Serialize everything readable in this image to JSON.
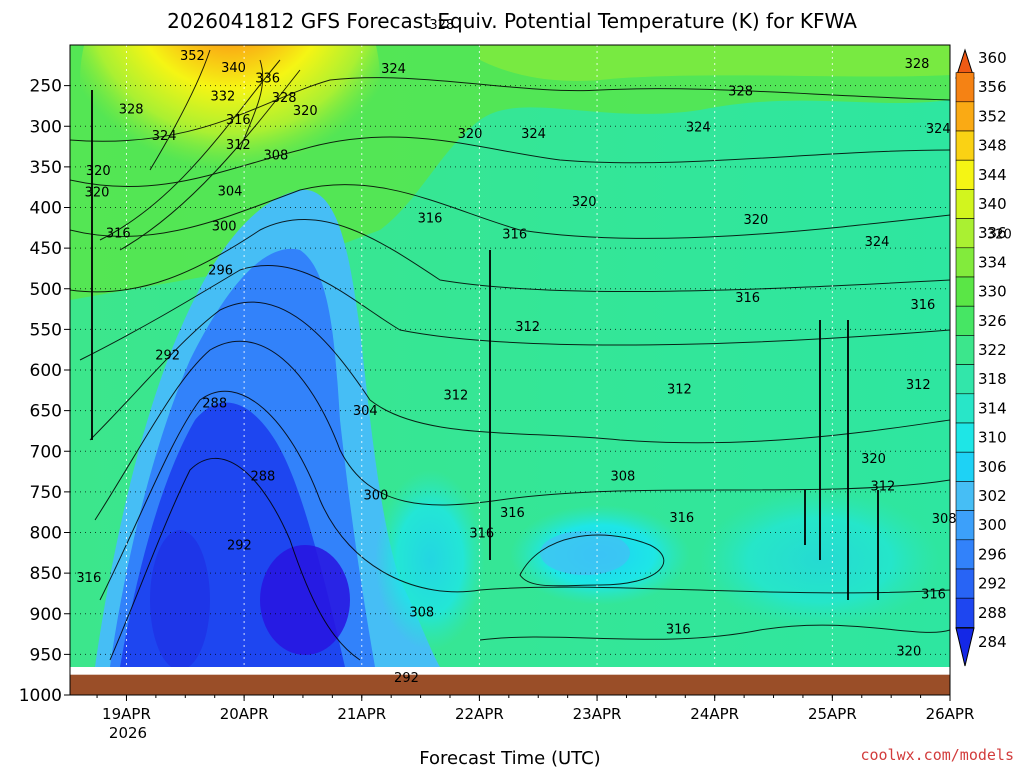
{
  "chart_data": {
    "type": "heatmap",
    "title": "2026041812 GFS Forecast Equiv. Potential Temperature (K) for KFWA",
    "xlabel": "Forecast Time (UTC)",
    "ylabel": "",
    "x_ticks": [
      "19APR",
      "20APR",
      "21APR",
      "22APR",
      "23APR",
      "24APR",
      "25APR",
      "26APR"
    ],
    "x_tick_day_offsets": [
      1,
      2,
      3,
      4,
      5,
      6,
      7,
      8
    ],
    "x_range_day_offsets": [
      0.52,
      8.0
    ],
    "year_label": "2026",
    "y_ticks": [
      250,
      300,
      350,
      400,
      450,
      500,
      550,
      600,
      650,
      700,
      750,
      800,
      850,
      900,
      950,
      1000
    ],
    "y_range_hpa": [
      200,
      1000
    ],
    "ground_level_hpa": 975,
    "colorbar": {
      "labels": [
        284,
        288,
        292,
        296,
        300,
        302,
        306,
        310,
        314,
        318,
        322,
        326,
        330,
        334,
        336,
        340,
        344,
        348,
        352,
        356,
        360
      ],
      "colors": [
        "#1428e6",
        "#1e46f0",
        "#2864f5",
        "#3282fa",
        "#3ca0fa",
        "#46bef5",
        "#1ed2f5",
        "#1ee6e6",
        "#28e6c8",
        "#32e6aa",
        "#3ce68c",
        "#46e664",
        "#5ae646",
        "#82eb3c",
        "#aaf032",
        "#d2f51e",
        "#f5f514",
        "#fad214",
        "#faaa14",
        "#f58214",
        "#f05a14"
      ]
    },
    "contour_labels": [
      {
        "v": 352,
        "d": 1.56,
        "p": 212
      },
      {
        "v": 340,
        "d": 1.91,
        "p": 227
      },
      {
        "v": 336,
        "d": 2.2,
        "p": 240
      },
      {
        "v": 332,
        "d": 1.82,
        "p": 262
      },
      {
        "v": 328,
        "d": 2.34,
        "p": 264
      },
      {
        "v": 328,
        "d": 3.68,
        "p": 174
      },
      {
        "v": 328,
        "d": 1.04,
        "p": 278
      },
      {
        "v": 328,
        "d": 6.22,
        "p": 256
      },
      {
        "v": 328,
        "d": 7.72,
        "p": 222
      },
      {
        "v": 324,
        "d": 3.27,
        "p": 228
      },
      {
        "v": 324,
        "d": 1.32,
        "p": 311
      },
      {
        "v": 324,
        "d": 4.46,
        "p": 308
      },
      {
        "v": 324,
        "d": 5.86,
        "p": 300
      },
      {
        "v": 324,
        "d": 7.9,
        "p": 302
      },
      {
        "v": 324,
        "d": 7.38,
        "p": 441
      },
      {
        "v": 320,
        "d": 2.52,
        "p": 280
      },
      {
        "v": 320,
        "d": 3.92,
        "p": 308
      },
      {
        "v": 320,
        "d": 0.75,
        "p": 380
      },
      {
        "v": 320,
        "d": 0.76,
        "p": 354
      },
      {
        "v": 320,
        "d": 4.89,
        "p": 392
      },
      {
        "v": 320,
        "d": 6.35,
        "p": 414
      },
      {
        "v": 320,
        "d": 8.42,
        "p": 432
      },
      {
        "v": 320,
        "d": 7.35,
        "p": 708
      },
      {
        "v": 320,
        "d": 7.65,
        "p": 945
      },
      {
        "v": 316,
        "d": 1.95,
        "p": 291
      },
      {
        "v": 316,
        "d": 3.58,
        "p": 412
      },
      {
        "v": 316,
        "d": 4.3,
        "p": 432
      },
      {
        "v": 316,
        "d": 0.93,
        "p": 431
      },
      {
        "v": 316,
        "d": 6.28,
        "p": 510
      },
      {
        "v": 316,
        "d": 7.77,
        "p": 519
      },
      {
        "v": 316,
        "d": 0.68,
        "p": 855
      },
      {
        "v": 316,
        "d": 4.28,
        "p": 775
      },
      {
        "v": 316,
        "d": 4.02,
        "p": 800
      },
      {
        "v": 316,
        "d": 5.72,
        "p": 781
      },
      {
        "v": 316,
        "d": 5.69,
        "p": 918
      },
      {
        "v": 316,
        "d": 7.86,
        "p": 875
      },
      {
        "v": 312,
        "d": 1.95,
        "p": 322
      },
      {
        "v": 312,
        "d": 4.41,
        "p": 546
      },
      {
        "v": 312,
        "d": 3.8,
        "p": 630
      },
      {
        "v": 312,
        "d": 5.7,
        "p": 623
      },
      {
        "v": 312,
        "d": 7.73,
        "p": 617
      },
      {
        "v": 312,
        "d": 7.43,
        "p": 742
      },
      {
        "v": 308,
        "d": 2.27,
        "p": 335
      },
      {
        "v": 308,
        "d": 5.22,
        "p": 730
      },
      {
        "v": 308,
        "d": 3.51,
        "p": 897
      },
      {
        "v": 308,
        "d": 7.95,
        "p": 782
      },
      {
        "v": 304,
        "d": 1.88,
        "p": 379
      },
      {
        "v": 304,
        "d": 3.03,
        "p": 649
      },
      {
        "v": 300,
        "d": 1.83,
        "p": 422
      },
      {
        "v": 300,
        "d": 3.12,
        "p": 753
      },
      {
        "v": 296,
        "d": 1.8,
        "p": 476
      },
      {
        "v": 292,
        "d": 1.35,
        "p": 581
      },
      {
        "v": 292,
        "d": 1.96,
        "p": 815
      },
      {
        "v": 292,
        "d": 3.38,
        "p": 978
      },
      {
        "v": 288,
        "d": 1.75,
        "p": 640
      },
      {
        "v": 288,
        "d": 2.16,
        "p": 730
      }
    ]
  },
  "credit": "coolwx.com/models"
}
